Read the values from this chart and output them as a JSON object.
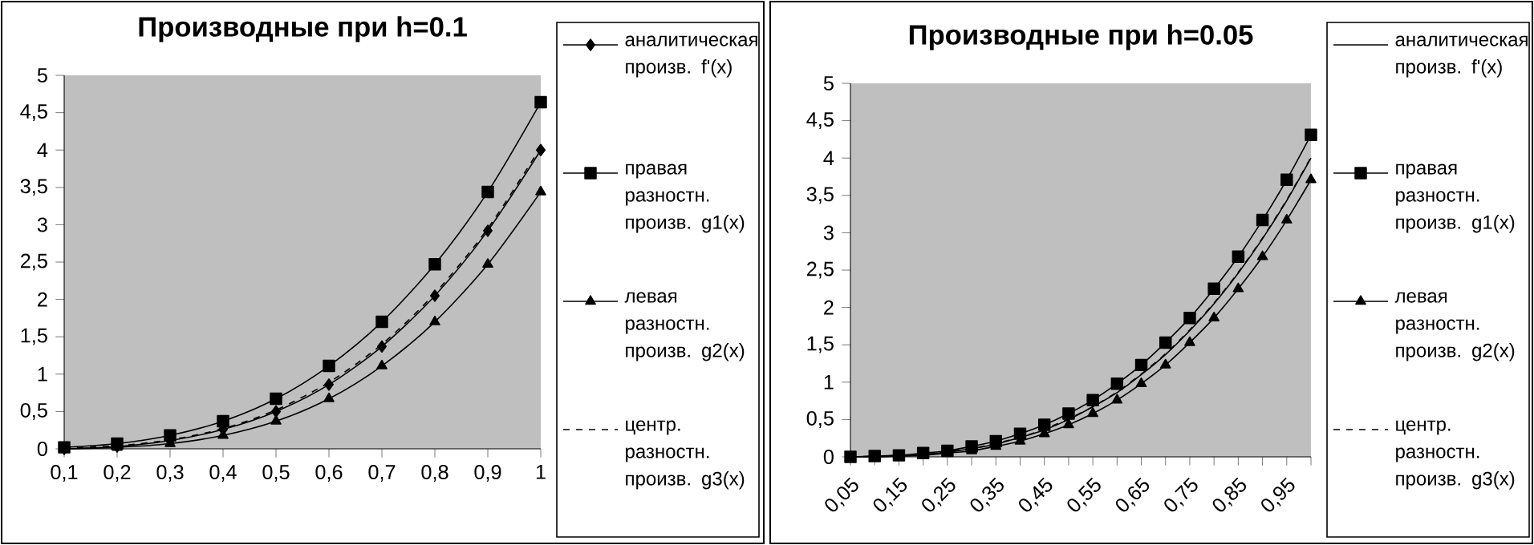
{
  "chart_data": [
    {
      "type": "line",
      "title": "Производные при h=0.1",
      "categories": [
        "0,1",
        "0,2",
        "0,3",
        "0,4",
        "0,5",
        "0,6",
        "0,7",
        "0,8",
        "0,9",
        "1"
      ],
      "series": [
        {
          "name": "аналитическая произв. f'(x)",
          "color": "#000000",
          "marker": "diamond",
          "line_style": "solid",
          "values": [
            0.0,
            0.03,
            0.11,
            0.26,
            0.5,
            0.86,
            1.37,
            2.05,
            2.92,
            4.0
          ]
        },
        {
          "name": "правая разностн. произв. g1(x)",
          "color": "#000000",
          "marker": "square",
          "line_style": "solid",
          "values": [
            0.02,
            0.07,
            0.18,
            0.37,
            0.67,
            1.11,
            1.7,
            2.47,
            3.44,
            4.64
          ]
        },
        {
          "name": "левая разностн. произв. g2(x)",
          "color": "#000000",
          "marker": "triangle",
          "line_style": "solid",
          "values": [
            0.0,
            0.02,
            0.07,
            0.18,
            0.37,
            0.67,
            1.11,
            1.7,
            2.47,
            3.44
          ]
        },
        {
          "name": "центр. разностн. произв. g3(x)",
          "color": "#000000",
          "marker": "none",
          "line_style": "dashed",
          "values": [
            0.01,
            0.04,
            0.12,
            0.27,
            0.52,
            0.89,
            1.4,
            2.08,
            2.95,
            4.04
          ]
        }
      ],
      "ylim": [
        0,
        5
      ],
      "yticks": [
        0,
        {
          "value": 0.5,
          "label": "0,5"
        },
        1,
        {
          "value": 1.5,
          "label": "1,5"
        },
        2,
        {
          "value": 2.5,
          "label": "2,5"
        },
        3,
        {
          "value": 3.5,
          "label": "3,5"
        },
        4,
        {
          "value": 4.5,
          "label": "4,5"
        },
        5
      ],
      "legend": "right"
    },
    {
      "type": "line",
      "title": "Производные при h=0.05",
      "categories": [
        "0,05",
        null,
        "0,15",
        null,
        "0,25",
        null,
        "0,35",
        null,
        "0,45",
        null,
        "0,55",
        null,
        "0,65",
        null,
        "0,75",
        null,
        "0,85",
        null,
        "0,95",
        null
      ],
      "series": [
        {
          "name": "аналитическая произв. f'(x)",
          "color": "#000000",
          "marker": "none",
          "line_style": "solid",
          "values": [
            0.0,
            0.0,
            0.01,
            0.03,
            0.06,
            0.11,
            0.17,
            0.26,
            0.36,
            0.5,
            0.67,
            0.86,
            1.1,
            1.37,
            1.69,
            2.05,
            2.46,
            2.92,
            3.43,
            4.0
          ]
        },
        {
          "name": "правая разностн. произв. g1(x)",
          "color": "#000000",
          "marker": "square",
          "line_style": "solid",
          "values": [
            0.0,
            0.01,
            0.02,
            0.05,
            0.08,
            0.14,
            0.21,
            0.31,
            0.43,
            0.58,
            0.76,
            0.98,
            1.23,
            1.53,
            1.86,
            2.25,
            2.68,
            3.17,
            3.71,
            4.31
          ]
        },
        {
          "name": "левая разностн. произв. g2(x)",
          "color": "#000000",
          "marker": "triangle",
          "line_style": "solid",
          "values": [
            0.0,
            0.0,
            0.01,
            0.02,
            0.05,
            0.08,
            0.14,
            0.21,
            0.31,
            0.43,
            0.58,
            0.76,
            0.98,
            1.23,
            1.53,
            1.86,
            2.25,
            2.68,
            3.17,
            3.71
          ]
        },
        {
          "name": "центр. разностн. произв. g3(x)",
          "color": "#000000",
          "marker": "none",
          "line_style": "dashed",
          "values": [
            0.0,
            0.01,
            0.02,
            0.03,
            0.07,
            0.11,
            0.18,
            0.26,
            0.37,
            0.51,
            0.67,
            0.87,
            1.11,
            1.38,
            1.7,
            2.06,
            2.47,
            2.93,
            3.44,
            4.01
          ]
        }
      ],
      "ylim": [
        0,
        5
      ],
      "yticks": [
        0,
        {
          "value": 0.5,
          "label": "0,5"
        },
        1,
        {
          "value": 1.5,
          "label": "1,5"
        },
        2,
        {
          "value": 2.5,
          "label": "2,5"
        },
        3,
        {
          "value": 3.5,
          "label": "3,5"
        },
        4,
        {
          "value": 4.5,
          "label": "4,5"
        },
        5
      ],
      "legend": "right"
    }
  ]
}
